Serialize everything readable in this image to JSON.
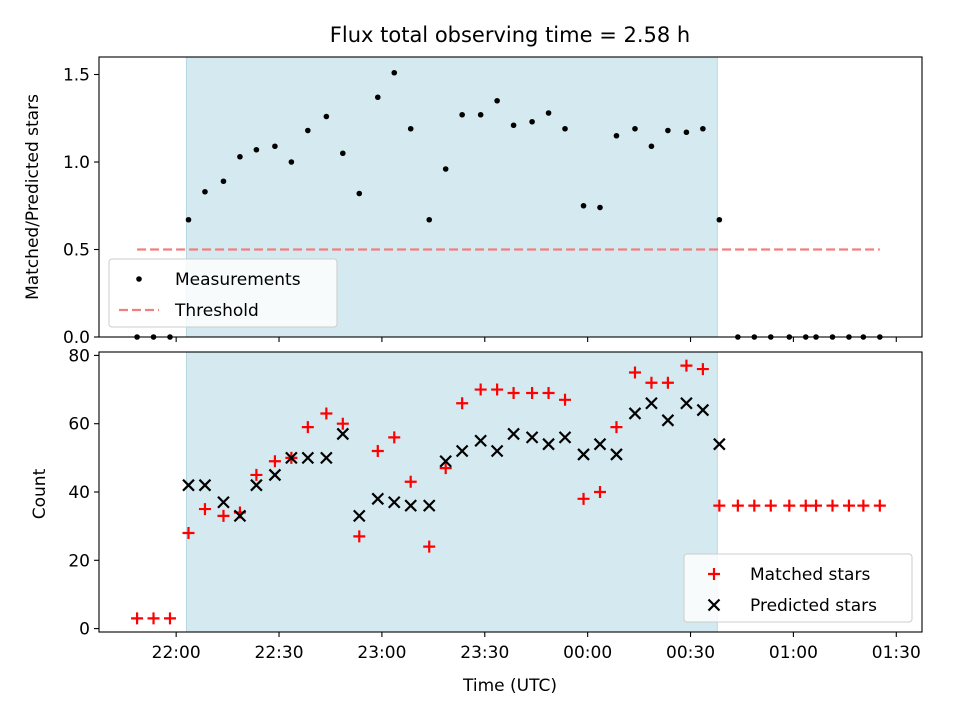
{
  "chart_data": [
    {
      "type": "scatter",
      "title": "Flux total observing time = 2.58 h",
      "ylabel": "Matched/Predicted stars",
      "xlabel": "",
      "ylim": [
        0,
        1.6
      ],
      "xlim": [
        -0.375,
        3.625
      ],
      "yticks": [
        0.0,
        0.5,
        1.0,
        1.5
      ],
      "ytick_labels": [
        "0.0",
        "0.5",
        "1.0",
        "1.5"
      ],
      "xticks": [
        0,
        0.5,
        1,
        1.5,
        2,
        2.5,
        3,
        3.5
      ],
      "shaded_region": {
        "x0": 0.05,
        "x1": 2.63,
        "color": "#d4eaf0"
      },
      "threshold_line": {
        "y": 0.5,
        "x0": -0.19,
        "x1": 3.42,
        "color": "#f08080"
      },
      "legend": {
        "placement": "lower-left",
        "entries": [
          "Measurements",
          "Threshold"
        ]
      },
      "series": [
        {
          "name": "Measurements",
          "color": "#000000",
          "x": [
            -0.19,
            -0.11,
            -0.03,
            0.06,
            0.14,
            0.23,
            0.31,
            0.39,
            0.48,
            0.56,
            0.64,
            0.73,
            0.81,
            0.89,
            0.98,
            1.06,
            1.14,
            1.23,
            1.31,
            1.39,
            1.48,
            1.56,
            1.64,
            1.73,
            1.81,
            1.89,
            1.98,
            2.06,
            2.14,
            2.23,
            2.31,
            2.39,
            2.48,
            2.56,
            2.64,
            2.73,
            2.81,
            2.89,
            2.98,
            3.06,
            3.11,
            3.19,
            3.27,
            3.34,
            3.42
          ],
          "y": [
            0.0,
            0.0,
            0.0,
            0.67,
            0.83,
            0.89,
            1.03,
            1.07,
            1.09,
            1.0,
            1.18,
            1.26,
            1.05,
            0.82,
            1.37,
            1.51,
            1.19,
            0.67,
            0.96,
            1.27,
            1.27,
            1.35,
            1.21,
            1.23,
            1.28,
            1.19,
            0.75,
            0.74,
            1.15,
            1.19,
            1.09,
            1.18,
            1.17,
            1.19,
            0.67,
            0.0,
            0.0,
            0.0,
            0.0,
            0.0,
            0.0,
            0.0,
            0.0,
            0.0,
            0.0
          ]
        }
      ]
    },
    {
      "type": "scatter",
      "title": "",
      "xlabel": "Time (UTC)",
      "ylabel": "Count",
      "ylim": [
        -1,
        81
      ],
      "xlim": [
        -0.375,
        3.625
      ],
      "yticks": [
        0,
        20,
        40,
        60,
        80
      ],
      "ytick_labels": [
        "0",
        "20",
        "40",
        "60",
        "80"
      ],
      "xticks": [
        0,
        0.5,
        1,
        1.5,
        2,
        2.5,
        3,
        3.5
      ],
      "xtick_labels": [
        "22:00",
        "22:30",
        "23:00",
        "23:30",
        "00:00",
        "00:30",
        "01:00",
        "01:30"
      ],
      "shaded_region": {
        "x0": 0.05,
        "x1": 2.63,
        "color": "#d4eaf0"
      },
      "legend": {
        "placement": "lower-right",
        "entries": [
          "Matched stars",
          "Predicted stars"
        ]
      },
      "series": [
        {
          "name": "Matched stars",
          "marker": "+",
          "color": "#ff0000",
          "x": [
            -0.19,
            -0.11,
            -0.03,
            0.06,
            0.14,
            0.23,
            0.31,
            0.39,
            0.48,
            0.56,
            0.64,
            0.73,
            0.81,
            0.89,
            0.98,
            1.06,
            1.14,
            1.23,
            1.31,
            1.39,
            1.48,
            1.56,
            1.64,
            1.73,
            1.81,
            1.89,
            1.98,
            2.06,
            2.14,
            2.23,
            2.31,
            2.39,
            2.48,
            2.56,
            2.64,
            2.73,
            2.81,
            2.89,
            2.98,
            3.06,
            3.11,
            3.19,
            3.27,
            3.34,
            3.42
          ],
          "y": [
            3,
            3,
            3,
            28,
            35,
            33,
            34,
            45,
            49,
            50,
            59,
            63,
            60,
            27,
            52,
            56,
            43,
            24,
            47,
            66,
            70,
            70,
            69,
            69,
            69,
            67,
            38,
            40,
            59,
            75,
            72,
            72,
            77,
            76,
            36,
            36,
            36,
            36,
            36,
            36,
            36,
            36,
            36,
            36,
            36
          ]
        },
        {
          "name": "Predicted stars",
          "marker": "x",
          "color": "#000000",
          "x": [
            0.06,
            0.14,
            0.23,
            0.31,
            0.39,
            0.48,
            0.56,
            0.64,
            0.73,
            0.81,
            0.89,
            0.98,
            1.06,
            1.14,
            1.23,
            1.31,
            1.39,
            1.48,
            1.56,
            1.64,
            1.73,
            1.81,
            1.89,
            1.98,
            2.06,
            2.14,
            2.23,
            2.31,
            2.39,
            2.48,
            2.56,
            2.64
          ],
          "y": [
            42,
            42,
            37,
            33,
            42,
            45,
            50,
            50,
            50,
            57,
            33,
            38,
            37,
            36,
            36,
            49,
            52,
            55,
            52,
            57,
            56,
            54,
            56,
            51,
            54,
            51,
            63,
            66,
            61,
            66,
            64,
            54
          ]
        }
      ]
    }
  ]
}
